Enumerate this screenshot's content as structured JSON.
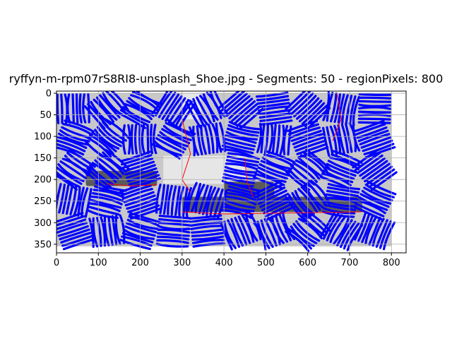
{
  "chart_data": {
    "type": "heatmap",
    "title": "ryffyn-m-rpm07rS8RI8-unsplash_Shoe.jpg - Segments: 50 - regionPixels: 800",
    "xlabel": "",
    "ylabel": "",
    "xlim": [
      0,
      835
    ],
    "ylim": [
      370,
      -5
    ],
    "y_inverted": true,
    "grid": true,
    "image_extent": {
      "x": [
        0,
        800
      ],
      "y": [
        0,
        355
      ]
    },
    "x_ticks": [
      0,
      100,
      200,
      300,
      400,
      500,
      600,
      700,
      800
    ],
    "y_ticks": [
      0,
      50,
      100,
      150,
      200,
      250,
      300,
      350
    ],
    "x_tick_labels": [
      "0",
      "100",
      "200",
      "300",
      "400",
      "500",
      "600",
      "700",
      "800"
    ],
    "y_tick_labels": [
      "0",
      "50",
      "100",
      "150",
      "200",
      "250",
      "300",
      "350"
    ],
    "segment_boundary_color": "#ff0000",
    "stroke_color": "#0000ff",
    "background_gray": "#c8c8c8",
    "light_region_color": "#e6e6e6",
    "dark_shoe_color": "#5a5a5a",
    "dark_regions": [
      {
        "x": [
          70,
          240
        ],
        "y": [
          180,
          215
        ]
      },
      {
        "x": [
          300,
          730
        ],
        "y": [
          240,
          275
        ]
      },
      {
        "x": [
          400,
          520
        ],
        "y": [
          205,
          250
        ]
      }
    ],
    "light_regions": [
      {
        "x": [
          255,
          455
        ],
        "y": [
          145,
          210
        ]
      },
      {
        "x": [
          300,
          345
        ],
        "y": [
          0,
          60
        ]
      }
    ],
    "blob_grid": {
      "cols": 10,
      "rows": 5
    }
  }
}
